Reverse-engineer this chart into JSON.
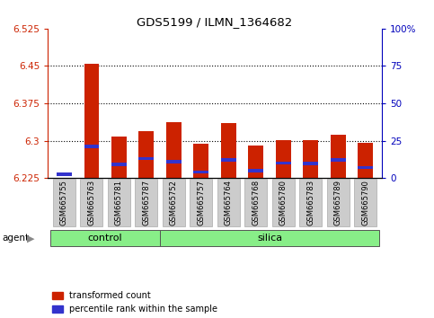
{
  "title": "GDS5199 / ILMN_1364682",
  "samples": [
    "GSM665755",
    "GSM665763",
    "GSM665781",
    "GSM665787",
    "GSM665752",
    "GSM665757",
    "GSM665764",
    "GSM665768",
    "GSM665780",
    "GSM665783",
    "GSM665789",
    "GSM665790"
  ],
  "groups": [
    "control",
    "control",
    "control",
    "control",
    "silica",
    "silica",
    "silica",
    "silica",
    "silica",
    "silica",
    "silica",
    "silica"
  ],
  "transformed_count": [
    6.226,
    6.455,
    6.308,
    6.32,
    6.337,
    6.294,
    6.336,
    6.29,
    6.302,
    6.302,
    6.312,
    6.296
  ],
  "percentile_rank": [
    1.5,
    20.0,
    8.0,
    12.0,
    10.0,
    3.0,
    11.0,
    4.0,
    9.0,
    8.5,
    11.0,
    6.0
  ],
  "ymin": 6.225,
  "ymax": 6.525,
  "yticks": [
    6.225,
    6.3,
    6.375,
    6.45,
    6.525
  ],
  "ytick_labels": [
    "6.225",
    "6.3",
    "6.375",
    "6.45",
    "6.525"
  ],
  "right_yticks": [
    0,
    25,
    50,
    75,
    100
  ],
  "right_ytick_labels": [
    "0",
    "25",
    "50",
    "75",
    "100%"
  ],
  "bar_color_red": "#cc2200",
  "bar_color_blue": "#3333cc",
  "bar_width": 0.55,
  "control_color": "#88ee88",
  "silica_color": "#88ee88",
  "agent_label": "agent",
  "control_label": "control",
  "silica_label": "silica",
  "legend_red": "transformed count",
  "legend_blue": "percentile rank within the sample",
  "left_axis_color": "#cc2200",
  "right_axis_color": "#0000bb",
  "n_control": 4,
  "n_silica": 8
}
